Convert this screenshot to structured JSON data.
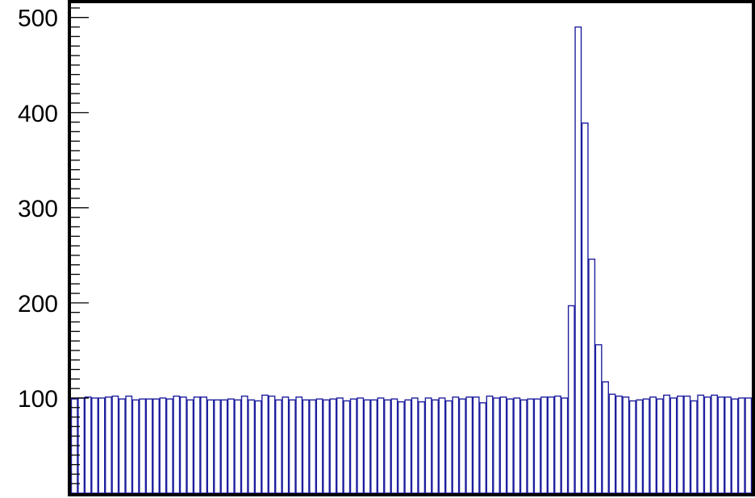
{
  "chart_data": {
    "type": "bar",
    "title": "",
    "xlabel": "",
    "ylabel": "",
    "ylim": [
      0,
      515
    ],
    "yticks": [
      100,
      200,
      300,
      400,
      500
    ],
    "ytick_labels": [
      "100",
      "200",
      "300",
      "400",
      "500"
    ],
    "grid": false,
    "legend": "none",
    "bar_color": "#1f1f9f",
    "values": [
      99,
      100,
      101,
      100,
      100,
      101,
      102,
      99,
      102,
      98,
      99,
      99,
      99,
      100,
      99,
      102,
      101,
      98,
      101,
      101,
      98,
      98,
      98,
      99,
      98,
      102,
      98,
      97,
      103,
      102,
      98,
      101,
      98,
      101,
      98,
      98,
      99,
      98,
      99,
      100,
      97,
      99,
      100,
      98,
      98,
      100,
      98,
      99,
      96,
      98,
      100,
      96,
      100,
      98,
      100,
      97,
      101,
      99,
      101,
      101,
      95,
      102,
      100,
      101,
      99,
      100,
      98,
      99,
      99,
      101,
      101,
      102,
      100,
      197,
      490,
      389,
      246,
      156,
      117,
      104,
      102,
      101,
      97,
      98,
      99,
      101,
      99,
      103,
      100,
      102,
      102,
      97,
      103,
      101,
      103,
      101,
      101,
      99,
      100,
      100
    ]
  }
}
